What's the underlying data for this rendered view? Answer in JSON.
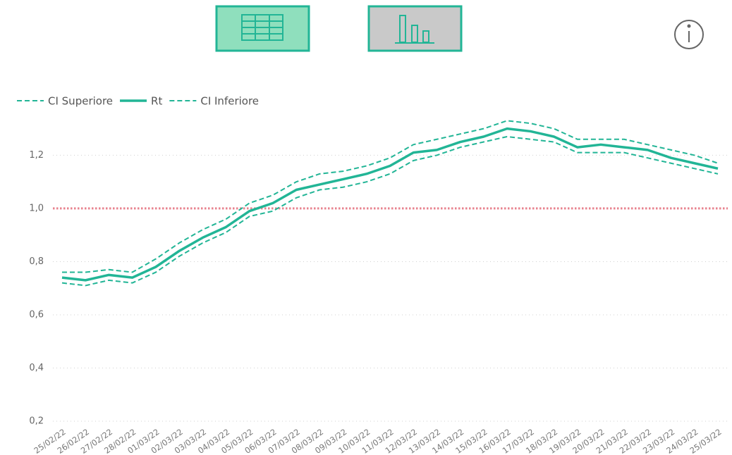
{
  "chart_data": {
    "type": "line",
    "categories": [
      "25/02/22",
      "26/02/22",
      "27/02/22",
      "28/02/22",
      "01/03/22",
      "02/03/22",
      "03/03/22",
      "04/03/22",
      "05/03/22",
      "06/03/22",
      "07/03/22",
      "08/03/22",
      "09/03/22",
      "10/03/22",
      "11/03/22",
      "12/03/22",
      "13/03/22",
      "14/03/22",
      "15/03/22",
      "16/03/22",
      "17/03/22",
      "18/03/22",
      "19/03/22",
      "20/03/22",
      "21/03/22",
      "22/03/22",
      "23/03/22",
      "24/03/22",
      "25/03/22"
    ],
    "series": [
      {
        "name": "CI Superiore",
        "color": "#22b596",
        "dashed": true,
        "values": [
          0.76,
          0.76,
          0.77,
          0.76,
          0.81,
          0.87,
          0.92,
          0.96,
          1.02,
          1.05,
          1.1,
          1.13,
          1.14,
          1.16,
          1.19,
          1.24,
          1.26,
          1.28,
          1.3,
          1.33,
          1.32,
          1.3,
          1.26,
          1.26,
          1.26,
          1.24,
          1.22,
          1.2,
          1.17
        ]
      },
      {
        "name": "Rt",
        "color": "#22b596",
        "dashed": false,
        "values": [
          0.74,
          0.73,
          0.75,
          0.74,
          0.78,
          0.84,
          0.89,
          0.93,
          0.99,
          1.02,
          1.07,
          1.09,
          1.11,
          1.13,
          1.16,
          1.21,
          1.22,
          1.25,
          1.27,
          1.3,
          1.29,
          1.27,
          1.23,
          1.24,
          1.23,
          1.22,
          1.19,
          1.17,
          1.15
        ]
      },
      {
        "name": "CI Inferiore",
        "color": "#22b596",
        "dashed": true,
        "values": [
          0.72,
          0.71,
          0.73,
          0.72,
          0.76,
          0.82,
          0.87,
          0.91,
          0.97,
          0.99,
          1.04,
          1.07,
          1.08,
          1.1,
          1.13,
          1.18,
          1.2,
          1.23,
          1.25,
          1.27,
          1.26,
          1.25,
          1.21,
          1.21,
          1.21,
          1.19,
          1.17,
          1.15,
          1.13
        ]
      }
    ],
    "ylim": [
      0.2,
      1.36
    ],
    "yticks": [
      {
        "value": 0.2,
        "label": "0,2"
      },
      {
        "value": 0.4,
        "label": "0,4"
      },
      {
        "value": 0.6,
        "label": "0,6"
      },
      {
        "value": 0.8,
        "label": "0,8"
      },
      {
        "value": 1.0,
        "label": "1,0"
      },
      {
        "value": 1.2,
        "label": "1,2"
      }
    ],
    "grid": true,
    "reference_line": {
      "value": 1.0,
      "color": "#e8838f"
    },
    "legend": "top-left"
  }
}
